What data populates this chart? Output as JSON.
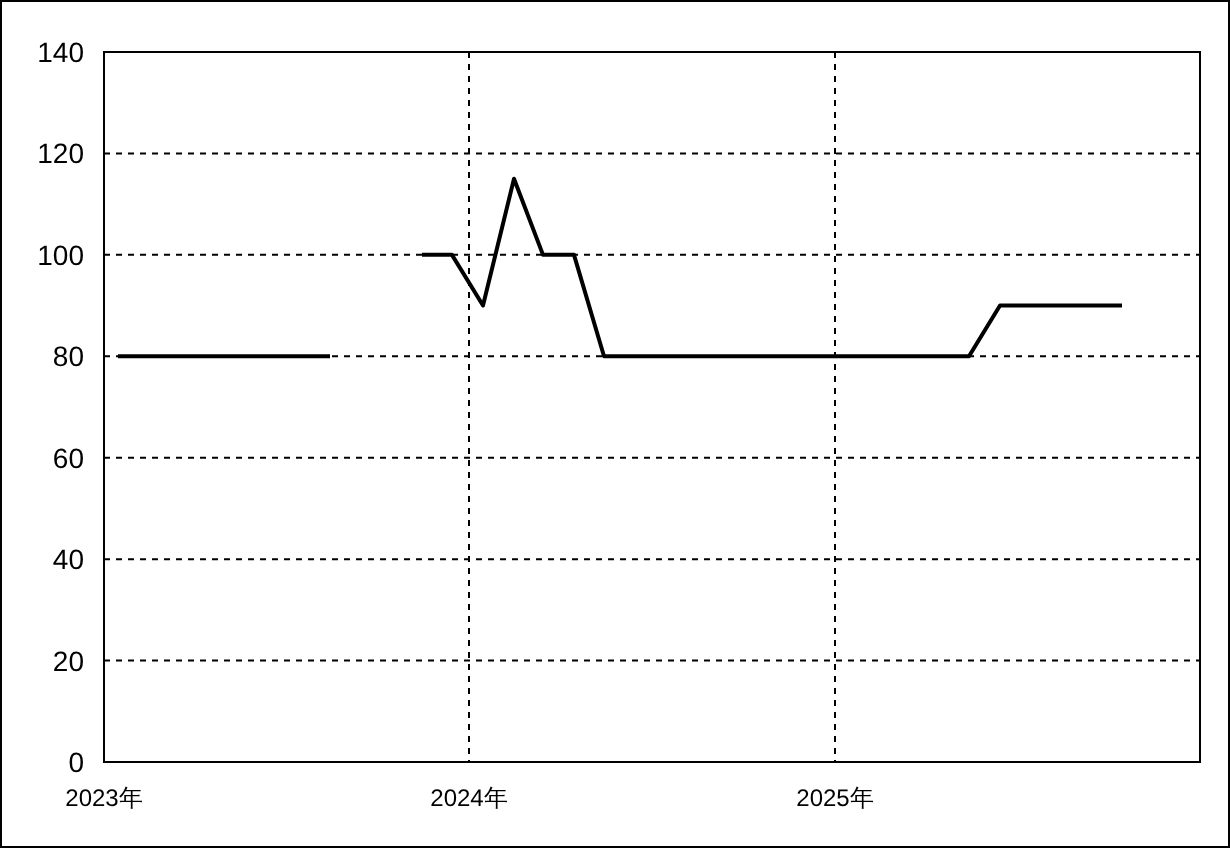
{
  "chart_data": {
    "type": "line",
    "series": [
      {
        "color": "#000000",
        "x": [
          "2023-01-15",
          "2023-02-15",
          "2023-03-15",
          "2023-04-15",
          "2023-05-15",
          "2023-06-15",
          "2023-07-15",
          "2023-08-15"
        ],
        "values": [
          80,
          80,
          80,
          80,
          80,
          80,
          80,
          80
        ]
      },
      {
        "color": "#000000",
        "x": [
          "2023-11-15",
          "2023-12-15",
          "2024-01-15",
          "2024-02-15",
          "2024-03-15",
          "2024-04-15",
          "2024-05-15",
          "2024-06-15",
          "2024-07-15",
          "2024-08-15",
          "2024-09-15",
          "2024-10-15",
          "2024-11-15",
          "2024-12-15",
          "2025-01-15",
          "2025-02-15",
          "2025-03-15",
          "2025-04-15",
          "2025-05-15",
          "2025-06-15",
          "2025-07-15",
          "2025-08-15",
          "2025-09-15",
          "2025-10-15"
        ],
        "values": [
          100,
          100,
          90,
          115,
          100,
          100,
          80,
          80,
          80,
          80,
          80,
          80,
          80,
          80,
          80,
          80,
          80,
          80,
          80,
          90,
          90,
          90,
          90,
          90
        ]
      }
    ],
    "xlim": [
      "2023-01-01",
      "2026-01-01"
    ],
    "xticks": [
      {
        "value": "2023",
        "label": "2023年"
      },
      {
        "value": "2024",
        "label": "2024年"
      },
      {
        "value": "2025",
        "label": "2025年"
      }
    ],
    "ylim": [
      0,
      140
    ],
    "yticks": [
      0,
      20,
      40,
      60,
      80,
      100,
      120,
      140
    ],
    "grid": true,
    "line_style": "solid",
    "marker": "none"
  }
}
